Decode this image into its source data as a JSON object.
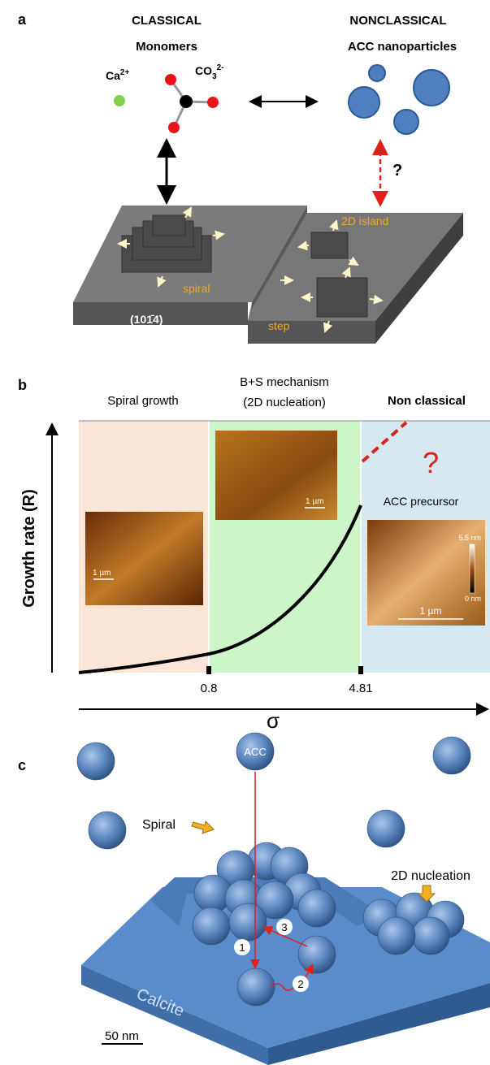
{
  "panel_a": {
    "label": "a",
    "classical": "CLASSICAL",
    "monomers": "Monomers",
    "ca": {
      "base": "Ca",
      "sup": "2+"
    },
    "co3": {
      "base": "CO",
      "sub": "3",
      "sup": "2-"
    },
    "nonclassical": "NONCLASSICAL",
    "acc_nanoparticles": "ACC nanoparticles",
    "question": "?",
    "island": "2D island",
    "spiral": "spiral",
    "face": "(101̄4)",
    "step": "step"
  },
  "panel_b": {
    "label": "b",
    "spiral_growth": "Spiral growth",
    "bs_mechanism": "B+S mechanism",
    "nucleation": "(2D nucleation)",
    "non_classical": "Non classical",
    "question": "?",
    "acc_precursor": "ACC precursor",
    "y_axis": "Growth rate (R)",
    "x_ticks": [
      "0.8",
      "4.81"
    ],
    "x_axis": "σ",
    "scale_labels": [
      "1 µm",
      "1 µm",
      "1 µm"
    ],
    "height_max": "5.5 nm",
    "height_min": "0 nm"
  },
  "panel_c": {
    "label": "c",
    "acc": "ACC",
    "spiral": "Spiral",
    "nucleation": "2D nucleation",
    "steps": [
      "1",
      "2",
      "3"
    ],
    "calcite": "Calcite",
    "scale": "50 nm"
  }
}
